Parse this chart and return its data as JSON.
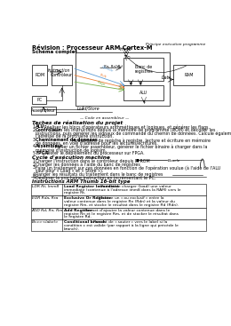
{
  "title": "Révision : Processeur ARM Cortex-M",
  "subtitle": "Schéma complet",
  "header_right": "Principe exécution programme",
  "background_color": "#ffffff",
  "taches_title": "Taches de réalisation du projet",
  "taches": [
    [
      "ALU",
      " : Réaliser les blocs d'opérateurs arithmétiques et logiques, et générer les flags."
    ],
    [
      "Contrôleur",
      " : Lire les instructions depuis la mémoire de programme (ROM) et décoder les instructions, puis générer les signaux de commande du chemin de données. Calcule également l'adresse de la prochaine instruction."
    ],
    [
      "Cheminement de données",
      " : Mouvement de registre à registre, lecture et écriture en mémoire de données, en voie d'adresse pour les lectures/écritures."
    ],
    [
      "Assembleur",
      " : Parser un fichier assembleur, générer le fichier binaire à charger dans la mémoire d'instruction de logisim."
    ],
    [
      "FPGA",
      " : Tester le déploiement du processeur sur FPGA."
    ]
  ],
  "cycle_title": "Cycle d'exécution machine",
  "cycle": [
    "Charger l'instruction dans le contrôleur depuis la ROM",
    "Charger les données à l'aide du banc de registres",
    "Faire un traitement sur ces données en fonction de l'opération voulue (à l'aide de l'ALU sauf pour « Load » et « Store »).",
    "Ranger les résultats du traitement dans le banc de registres",
    "Désigner la prochaine instruction en incrémentant le PC."
  ],
  "instr_title": "Instructions ARM Thumb 16-bit type",
  "instructions": [
    {
      "code": "LDR Rt, Imm8",
      "name": "Load Register Immédiate",
      "desc": " : Permet de charger (load) une valeur immédiate (contenue à l'adresse imm8 dans la RAM) vers le registre Rt."
    },
    {
      "code": "EOR Rda, Rra",
      "name": "Exclusive Or Register",
      "desc": " : Effectue un « ou exclusif » entre la valeur contenue dans le registre Rn (Rdn) et la valeur du registre Rm, et stocke le résultat dans le registre Rd (Rdn)."
    },
    {
      "code": "ADD Rd, Rn, Rm",
      "name": "Add Register",
      "desc": " : Permet d'ajouter la valeur contenue dans le registre Rn et le registre Rm, et de stocker le résultat dans le registre Rd."
    },
    {
      "code": "B<c><label>",
      "name": "Conditional branch",
      "desc": " : Permet de « sauter » vers le label si la condition c est valide (par rapport à la ligne qui précède le branch)."
    }
  ]
}
